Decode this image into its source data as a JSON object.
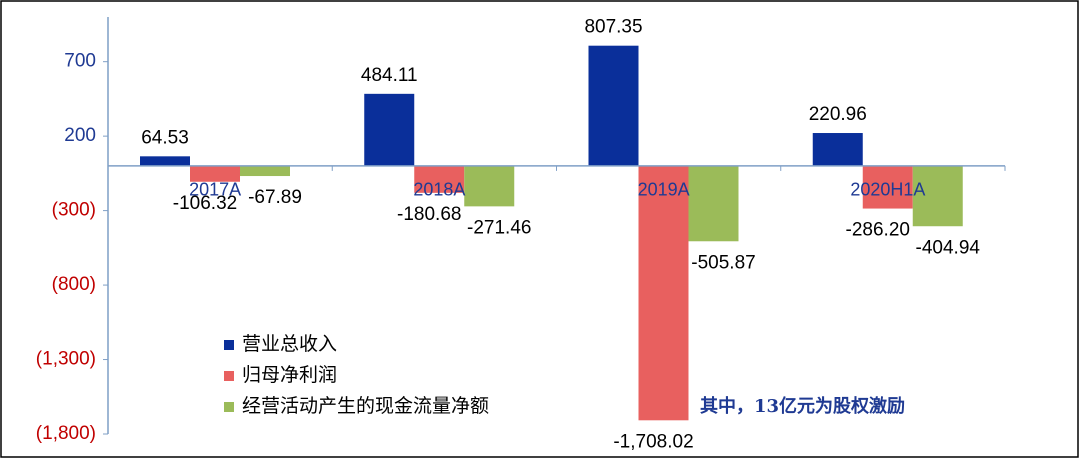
{
  "chart_data": {
    "type": "bar",
    "categories": [
      "2017A",
      "2018A",
      "2019A",
      "2020H1A"
    ],
    "series": [
      {
        "name": "营业总收入",
        "color": "#0a2f9a",
        "values": [
          64.53,
          484.11,
          807.35,
          220.96
        ],
        "value_labels": [
          "64.53",
          "484.11",
          "807.35",
          "220.96"
        ]
      },
      {
        "name": "归母净利润",
        "color": "#e8605f",
        "values": [
          -106.32,
          -180.68,
          -1708.02,
          -286.2
        ],
        "value_labels": [
          "-106.32",
          "-180.68",
          "-1,708.02",
          "-286.20"
        ]
      },
      {
        "name": "经营活动产生的现金流量净额",
        "color": "#9bbb59",
        "values": [
          -67.89,
          -271.46,
          -505.87,
          -404.94
        ],
        "value_labels": [
          "-67.89",
          "-271.46",
          "-505.87",
          "-404.94"
        ]
      }
    ],
    "ylim": [
      -1800,
      1000
    ],
    "yticks": [
      700,
      200,
      {
        "value": -300,
        "label": "(300)"
      },
      {
        "value": -800,
        "label": "(800)"
      },
      {
        "value": -1300,
        "label": "(1,300)"
      },
      {
        "value": -1800,
        "label": "(1,800)"
      }
    ],
    "legend": "lower left",
    "annotation": "其中，13亿元为股权激励"
  }
}
